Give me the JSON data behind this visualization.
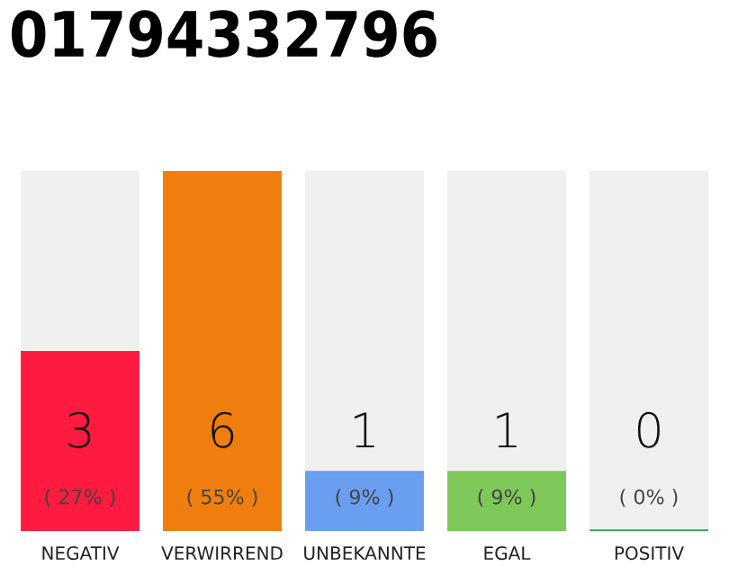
{
  "chart_data": {
    "type": "bar",
    "title": "01794332796",
    "categories": [
      "NEGATIV",
      "VERWIRREND",
      "UNBEKANNTE",
      "EGAL",
      "POSITIV"
    ],
    "values": [
      3,
      6,
      1,
      1,
      0
    ],
    "colors": [
      "#ff1a40",
      "#f07e0e",
      "#6a9eee",
      "#7ec85a",
      "#2ba84a"
    ],
    "tick_labels": "x",
    "grid": false,
    "value_labels": [
      "3",
      "6",
      "1",
      "1",
      "0"
    ],
    "annotations": [
      "( 27% )",
      "( 55% )",
      "( 9% )",
      "( 9% )",
      "( 0% )"
    ]
  }
}
